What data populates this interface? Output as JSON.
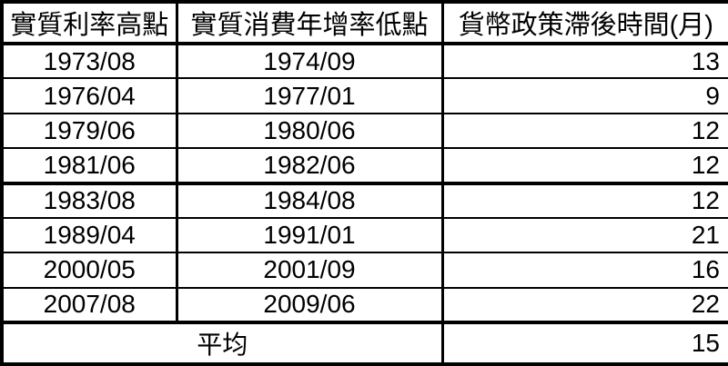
{
  "chart_data": {
    "type": "table",
    "title": "",
    "columns": [
      "實質利率高點",
      "實質消費年增率低點",
      "貨幣政策滯後時間(月)"
    ],
    "rows": [
      [
        "1973/08",
        "1974/09",
        13
      ],
      [
        "1976/04",
        "1977/01",
        9
      ],
      [
        "1979/06",
        "1980/06",
        12
      ],
      [
        "1981/06",
        "1982/06",
        12
      ],
      [
        "1983/08",
        "1984/08",
        12
      ],
      [
        "1989/04",
        "1991/01",
        21
      ],
      [
        "2000/05",
        "2001/09",
        16
      ],
      [
        "2007/08",
        "2009/06",
        22
      ]
    ],
    "footer": {
      "label": "平均",
      "value": 15
    },
    "layout_hints": {
      "column_alignment": [
        "center",
        "center",
        "right"
      ],
      "footer_label_colspan": 2,
      "thick_divider_after_row": 4
    }
  },
  "colors": {
    "border": "#000000",
    "text": "#000000",
    "background": "#ffffff"
  }
}
